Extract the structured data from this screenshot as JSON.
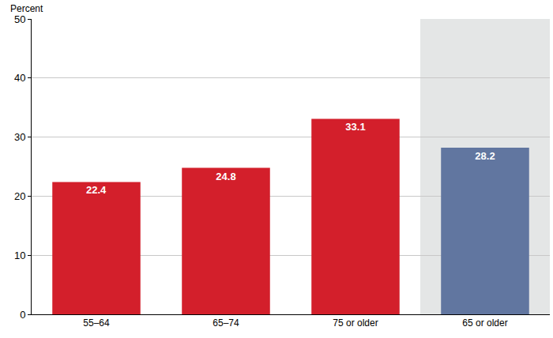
{
  "chart_data": {
    "type": "bar",
    "y_label": "Percent",
    "categories": [
      "55–64",
      "65–74",
      "75 or older",
      "65 or older"
    ],
    "values": [
      22.4,
      24.8,
      33.1,
      28.2
    ],
    "colors": [
      "#d31f2b",
      "#d31f2b",
      "#d31f2b",
      "#6176a0"
    ],
    "ylim": [
      0,
      50
    ],
    "yticks": [
      0,
      10,
      20,
      30,
      40,
      50
    ],
    "grid": true,
    "data_labels": true
  }
}
